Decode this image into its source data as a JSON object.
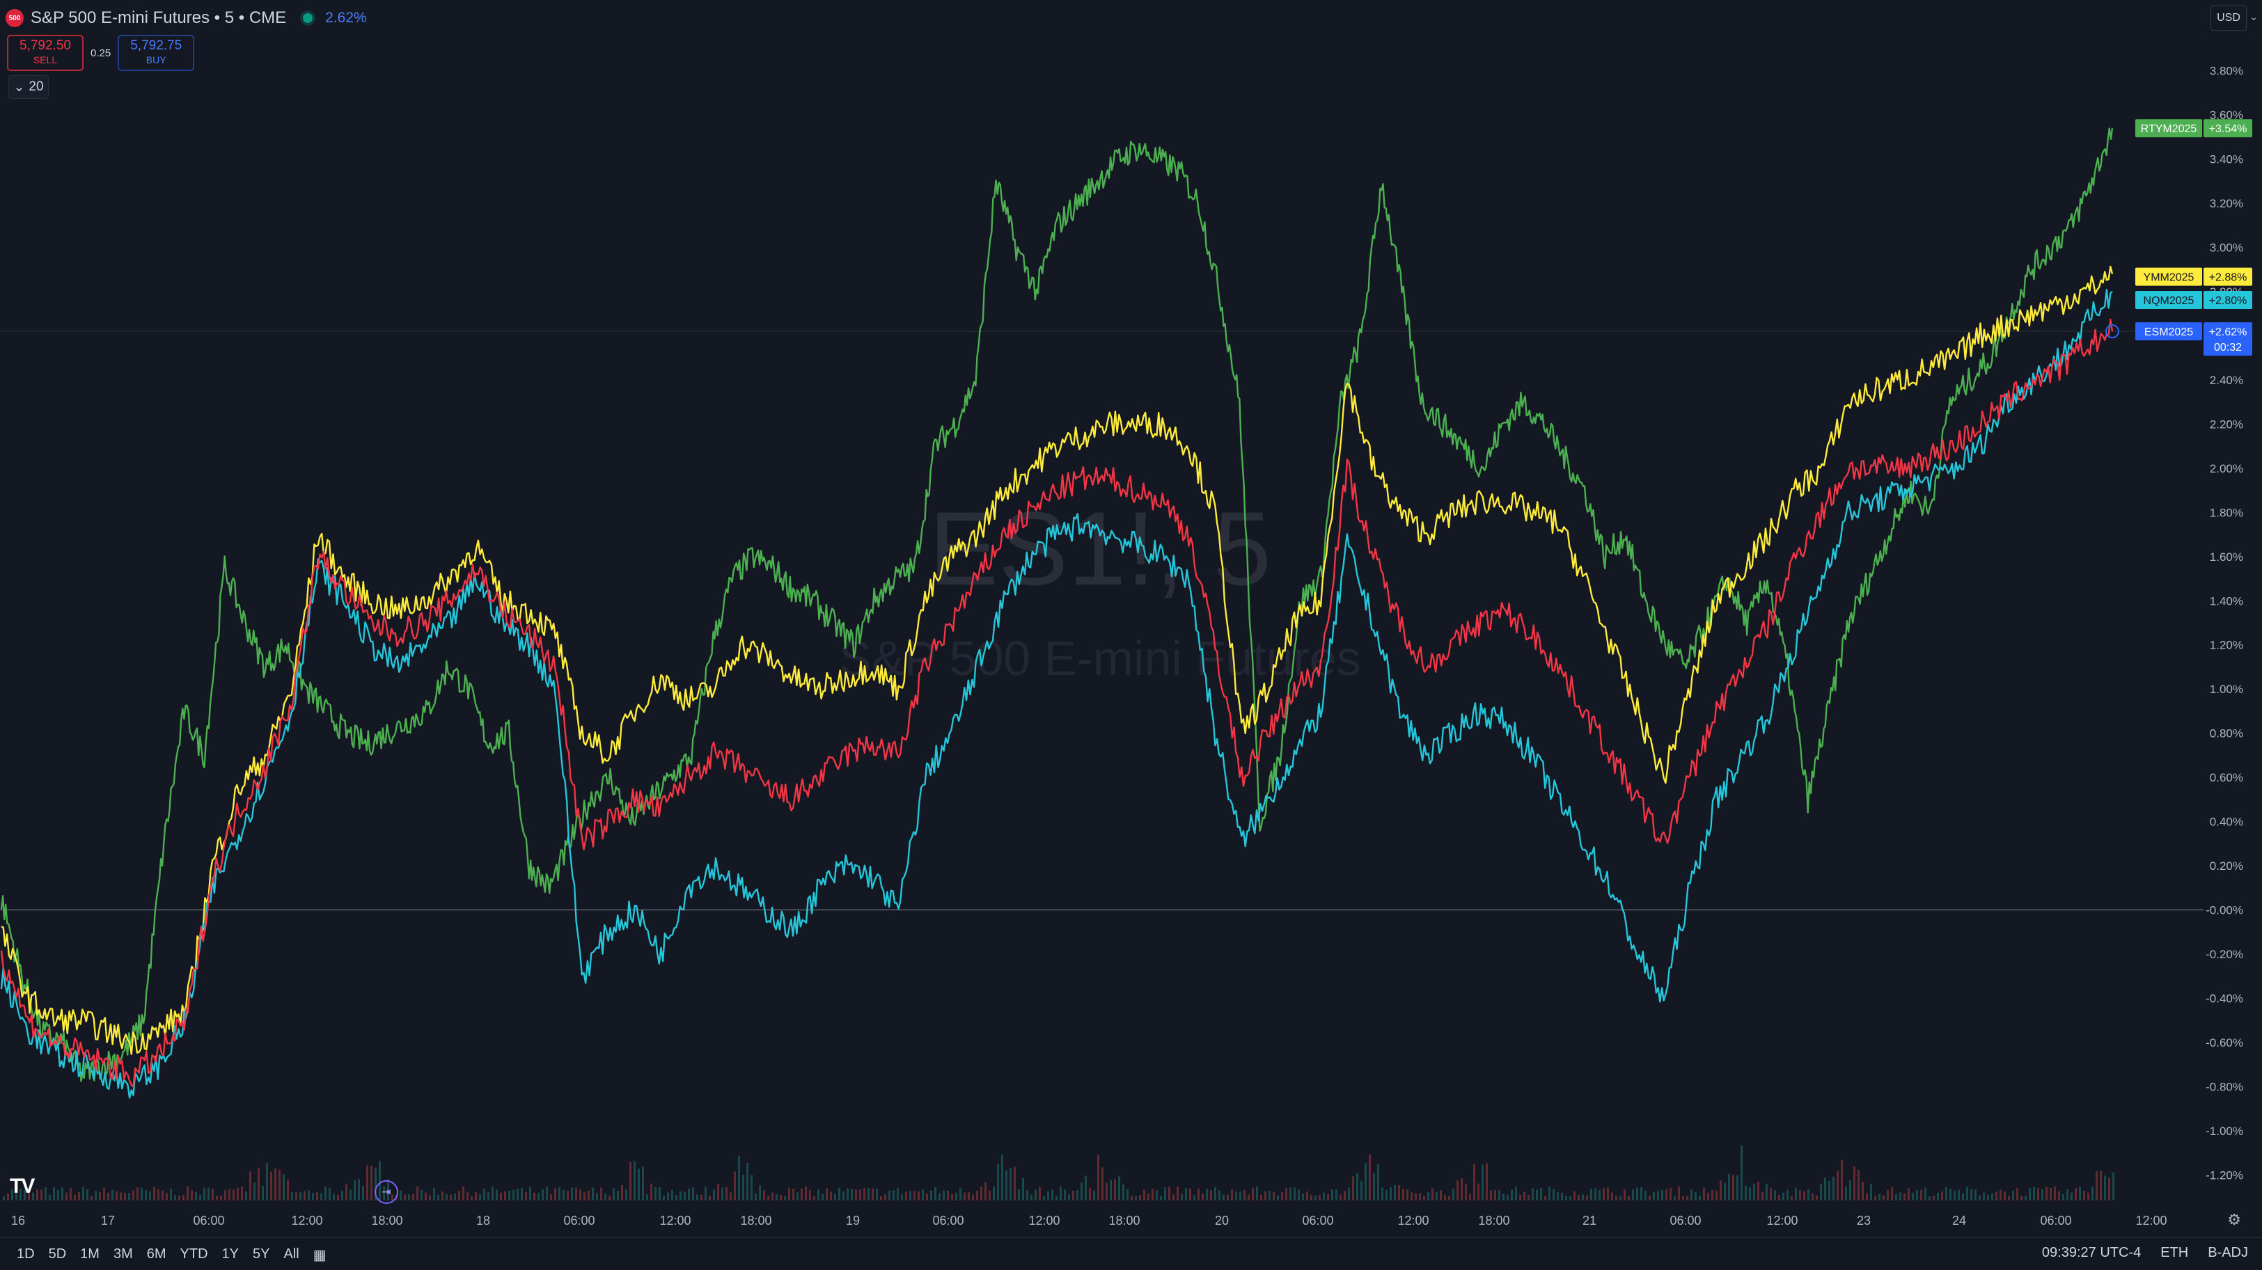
{
  "header": {
    "symbol_badge": "500",
    "title": "S&P 500 E-mini Futures • 5 • CME",
    "change": "2.62%",
    "sell": {
      "price": "5,792.50",
      "label": "SELL"
    },
    "spread": "0.25",
    "buy": {
      "price": "5,792.75",
      "label": "BUY"
    },
    "interval_count": "20",
    "currency": "USD"
  },
  "watermark": {
    "symbol": "ES1!, 5",
    "name": "S&P 500 E-mini Futures"
  },
  "bottom_bar": {
    "ranges": [
      "1D",
      "5D",
      "1M",
      "3M",
      "6M",
      "YTD",
      "1Y",
      "5Y",
      "All"
    ],
    "time": "09:39:27 UTC-4",
    "session": "ETH",
    "adjust": "B-ADJ"
  },
  "chart_data": {
    "type": "line",
    "y_unit": "%",
    "y_ticks": [
      "3.80%",
      "3.60%",
      "3.40%",
      "3.20%",
      "3.00%",
      "2.80%",
      "2.60%",
      "2.40%",
      "2.20%",
      "2.00%",
      "1.80%",
      "1.60%",
      "1.40%",
      "1.20%",
      "1.00%",
      "0.80%",
      "0.60%",
      "0.40%",
      "0.20%",
      "-0.00%",
      "-0.20%",
      "-0.40%",
      "-0.60%",
      "-0.80%",
      "-1.00%",
      "-1.20%"
    ],
    "ylim": [
      -1.3,
      3.9
    ],
    "x_ticks": [
      "16",
      "17",
      "06:00",
      "12:00",
      "18:00",
      "18",
      "06:00",
      "12:00",
      "18:00",
      "19",
      "06:00",
      "12:00",
      "18:00",
      "20",
      "06:00",
      "12:00",
      "18:00",
      "21",
      "06:00",
      "12:00",
      "23",
      "24",
      "06:00",
      "12:00"
    ],
    "baseline": 0,
    "series": [
      {
        "name": "RTYM2025",
        "label": "+3.54%",
        "color": "#4caf50",
        "values": [
          0.05,
          -0.3,
          -0.55,
          -0.6,
          -0.75,
          -0.7,
          -0.65,
          -0.5,
          0.3,
          0.9,
          0.7,
          1.55,
          1.3,
          1.1,
          1.2,
          1.0,
          0.9,
          0.8,
          0.75,
          0.8,
          0.85,
          0.9,
          1.1,
          1.0,
          0.75,
          0.8,
          0.2,
          0.1,
          0.3,
          0.5,
          0.6,
          0.4,
          0.5,
          0.6,
          0.7,
          1.2,
          1.5,
          1.6,
          1.55,
          1.45,
          1.4,
          1.3,
          1.2,
          1.4,
          1.5,
          1.55,
          2.1,
          2.2,
          2.4,
          3.3,
          3.0,
          2.8,
          3.1,
          3.2,
          3.3,
          3.4,
          3.45,
          3.4,
          3.35,
          3.2,
          2.8,
          2.3,
          0.4,
          0.7,
          1.4,
          1.5,
          2.3,
          2.6,
          3.3,
          2.8,
          2.3,
          2.2,
          2.1,
          2.0,
          2.2,
          2.3,
          2.2,
          2.05,
          1.9,
          1.6,
          1.7,
          1.4,
          1.2,
          1.1,
          1.3,
          1.5,
          1.3,
          1.5,
          1.1,
          0.5,
          0.9,
          1.3,
          1.5,
          1.7,
          1.9,
          1.8,
          2.3,
          2.4,
          2.5,
          2.7,
          2.9,
          3.0,
          3.1,
          3.3,
          3.54
        ]
      },
      {
        "name": "YMM2025",
        "label": "+2.88%",
        "color": "#ffeb3b",
        "values": [
          -0.1,
          -0.4,
          -0.5,
          -0.5,
          -0.55,
          -0.6,
          -0.55,
          -0.45,
          0.2,
          0.55,
          0.7,
          1.0,
          1.7,
          1.5,
          1.4,
          1.35,
          1.4,
          1.5,
          1.65,
          1.4,
          1.35,
          1.25,
          0.8,
          0.7,
          0.9,
          1.05,
          0.95,
          1.0,
          1.2,
          1.15,
          1.05,
          1.0,
          1.05,
          1.1,
          1.0,
          1.4,
          1.6,
          1.7,
          1.9,
          2.0,
          2.1,
          2.15,
          2.2,
          2.2,
          2.2,
          2.1,
          1.8,
          0.8,
          1.0,
          1.3,
          1.4,
          2.4,
          2.0,
          1.8,
          1.7,
          1.8,
          1.85,
          1.85,
          1.8,
          1.75,
          1.5,
          1.2,
          0.9,
          0.6,
          1.0,
          1.4,
          1.55,
          1.7,
          1.9,
          2.0,
          2.3,
          2.35,
          2.4,
          2.45,
          2.5,
          2.6,
          2.65,
          2.7,
          2.75,
          2.8,
          2.88
        ]
      },
      {
        "name": "NQM2025",
        "label": "+2.80%",
        "color": "#26c6da",
        "values": [
          -0.3,
          -0.55,
          -0.65,
          -0.7,
          -0.75,
          -0.8,
          -0.7,
          -0.5,
          0.1,
          0.35,
          0.6,
          0.9,
          1.55,
          1.4,
          1.2,
          1.1,
          1.2,
          1.3,
          1.5,
          1.3,
          1.2,
          1.0,
          -0.3,
          -0.1,
          0.0,
          -0.2,
          0.1,
          0.2,
          0.1,
          0.0,
          -0.1,
          0.1,
          0.2,
          0.15,
          0.0,
          0.6,
          0.8,
          1.1,
          1.4,
          1.6,
          1.7,
          1.75,
          1.7,
          1.65,
          1.6,
          1.5,
          0.8,
          0.3,
          0.5,
          0.7,
          0.9,
          1.65,
          1.3,
          0.9,
          0.7,
          0.8,
          0.9,
          0.85,
          0.7,
          0.5,
          0.3,
          0.1,
          -0.2,
          -0.4,
          0.1,
          0.5,
          0.7,
          0.9,
          1.2,
          1.5,
          1.8,
          1.85,
          1.9,
          1.95,
          2.0,
          2.1,
          2.3,
          2.4,
          2.5,
          2.65,
          2.8
        ]
      },
      {
        "name": "ESM2025",
        "label": "+2.62%",
        "color": "#f23645",
        "values": [
          -0.2,
          -0.5,
          -0.6,
          -0.65,
          -0.7,
          -0.75,
          -0.65,
          -0.5,
          0.15,
          0.45,
          0.65,
          0.95,
          1.6,
          1.45,
          1.3,
          1.25,
          1.3,
          1.4,
          1.55,
          1.35,
          1.25,
          1.1,
          0.3,
          0.4,
          0.5,
          0.45,
          0.6,
          0.7,
          0.65,
          0.55,
          0.5,
          0.6,
          0.7,
          0.75,
          0.7,
          1.1,
          1.3,
          1.5,
          1.7,
          1.8,
          1.9,
          1.95,
          1.95,
          1.9,
          1.85,
          1.7,
          1.2,
          0.6,
          0.8,
          1.0,
          1.1,
          2.0,
          1.6,
          1.3,
          1.1,
          1.2,
          1.3,
          1.35,
          1.25,
          1.1,
          0.9,
          0.7,
          0.5,
          0.3,
          0.6,
          0.9,
          1.1,
          1.3,
          1.6,
          1.8,
          2.0,
          2.0,
          2.0,
          2.05,
          2.1,
          2.2,
          2.3,
          2.4,
          2.45,
          2.55,
          2.62
        ]
      }
    ],
    "last_badge_extra": "00:32"
  }
}
